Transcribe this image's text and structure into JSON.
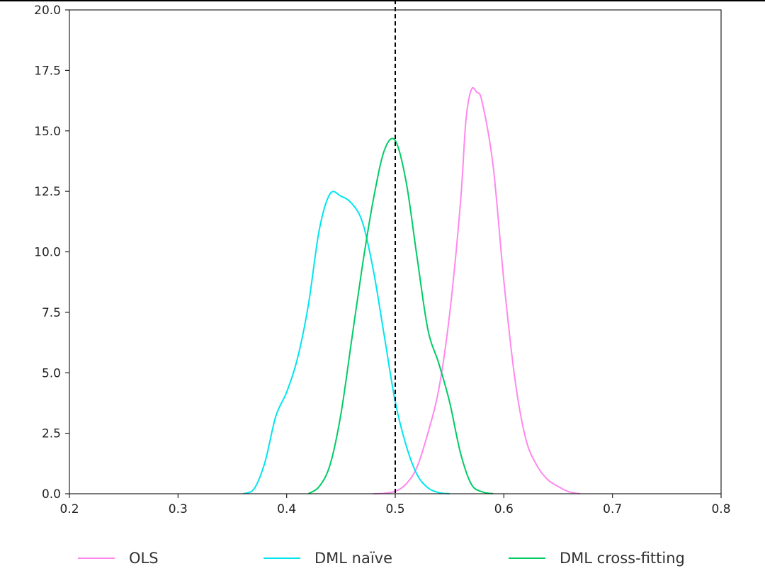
{
  "chart_data": {
    "type": "line",
    "title": "",
    "xlabel": "",
    "ylabel": "",
    "xlim": [
      0.2,
      0.8
    ],
    "ylim": [
      0.0,
      20.0
    ],
    "xticks": [
      "0.2",
      "0.3",
      "0.4",
      "0.5",
      "0.6",
      "0.7",
      "0.8"
    ],
    "yticks": [
      "0.0",
      "2.5",
      "5.0",
      "7.5",
      "10.0",
      "12.5",
      "15.0",
      "17.5",
      "20.0"
    ],
    "grid": false,
    "legend_position": "bottom",
    "reference_line": {
      "x": 0.5,
      "style": "dashed",
      "color": "#000000"
    },
    "series": [
      {
        "name": "OLS",
        "color": "#ff88ee",
        "points": [
          [
            0.48,
            0.0
          ],
          [
            0.49,
            0.02
          ],
          [
            0.5,
            0.1
          ],
          [
            0.51,
            0.4
          ],
          [
            0.52,
            1.1
          ],
          [
            0.53,
            2.5
          ],
          [
            0.54,
            4.3
          ],
          [
            0.55,
            7.4
          ],
          [
            0.56,
            12.0
          ],
          [
            0.565,
            15.4
          ],
          [
            0.57,
            16.7
          ],
          [
            0.575,
            16.6
          ],
          [
            0.58,
            16.2
          ],
          [
            0.59,
            13.6
          ],
          [
            0.6,
            8.8
          ],
          [
            0.61,
            4.8
          ],
          [
            0.62,
            2.3
          ],
          [
            0.63,
            1.2
          ],
          [
            0.64,
            0.6
          ],
          [
            0.65,
            0.3
          ],
          [
            0.66,
            0.08
          ],
          [
            0.67,
            0.0
          ]
        ]
      },
      {
        "name": "DML naïve",
        "color": "#00e5ee",
        "points": [
          [
            0.36,
            0.0
          ],
          [
            0.37,
            0.2
          ],
          [
            0.38,
            1.3
          ],
          [
            0.39,
            3.2
          ],
          [
            0.4,
            4.2
          ],
          [
            0.41,
            5.6
          ],
          [
            0.42,
            7.8
          ],
          [
            0.43,
            10.9
          ],
          [
            0.44,
            12.4
          ],
          [
            0.45,
            12.3
          ],
          [
            0.46,
            12.0
          ],
          [
            0.47,
            11.2
          ],
          [
            0.48,
            9.2
          ],
          [
            0.49,
            6.5
          ],
          [
            0.5,
            3.8
          ],
          [
            0.51,
            2.0
          ],
          [
            0.52,
            0.8
          ],
          [
            0.53,
            0.25
          ],
          [
            0.54,
            0.05
          ],
          [
            0.55,
            0.0
          ]
        ]
      },
      {
        "name": "DML cross-fitting",
        "color": "#00cc66",
        "points": [
          [
            0.42,
            0.0
          ],
          [
            0.43,
            0.3
          ],
          [
            0.44,
            1.2
          ],
          [
            0.45,
            3.3
          ],
          [
            0.46,
            6.4
          ],
          [
            0.47,
            9.5
          ],
          [
            0.48,
            12.2
          ],
          [
            0.49,
            14.2
          ],
          [
            0.5,
            14.6
          ],
          [
            0.51,
            12.9
          ],
          [
            0.52,
            9.8
          ],
          [
            0.53,
            6.8
          ],
          [
            0.54,
            5.4
          ],
          [
            0.55,
            3.8
          ],
          [
            0.56,
            1.7
          ],
          [
            0.57,
            0.4
          ],
          [
            0.58,
            0.08
          ],
          [
            0.59,
            0.0
          ]
        ]
      }
    ]
  }
}
